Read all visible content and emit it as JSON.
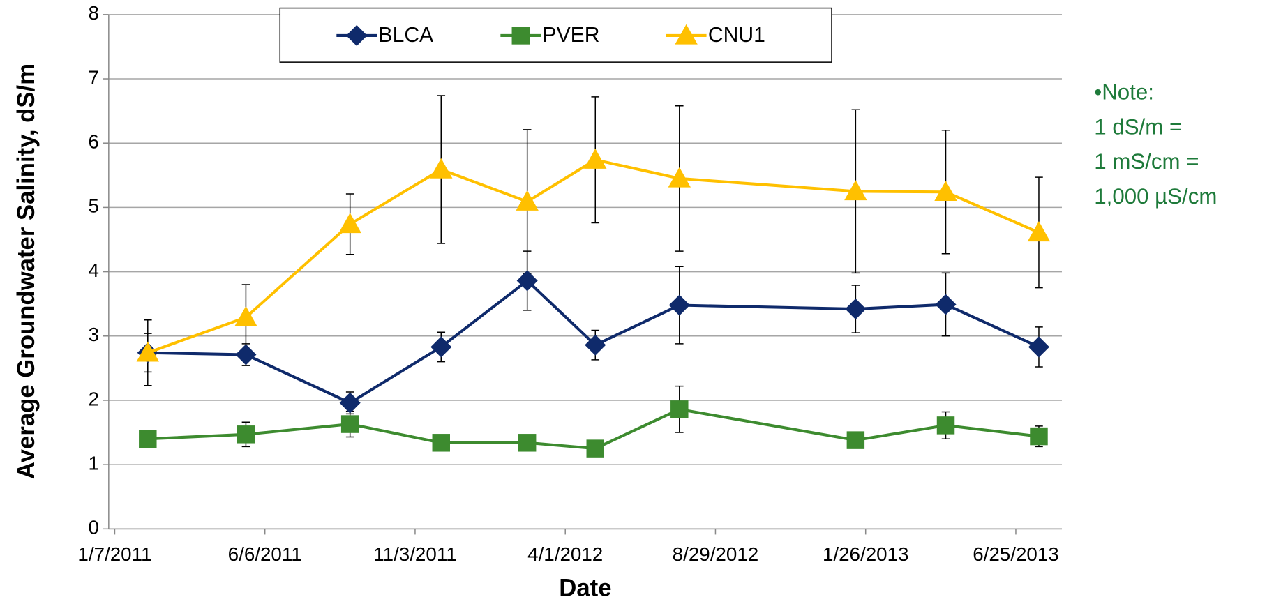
{
  "chart_data": {
    "type": "line",
    "x_label": "Date",
    "y_label": "Average Groundwater Salinity, dS/m",
    "x": [
      "2/9/2011",
      "5/18/2011",
      "8/30/2011",
      "11/29/2011",
      "2/23/2012",
      "5/1/2012",
      "7/24/2012",
      "1/16/2013",
      "4/16/2013",
      "7/18/2013"
    ],
    "series": [
      {
        "name": "BLCA",
        "color": "#0f2a6b",
        "marker": "diamond",
        "values": [
          2.74,
          2.71,
          1.96,
          2.83,
          3.86,
          2.86,
          3.48,
          3.42,
          3.49,
          2.83
        ],
        "errors": [
          0.3,
          0.17,
          0.17,
          0.23,
          0.46,
          0.23,
          0.6,
          0.37,
          0.49,
          0.31
        ]
      },
      {
        "name": "PVER",
        "color": "#3d8b2f",
        "marker": "square",
        "values": [
          1.4,
          1.47,
          1.63,
          1.34,
          1.34,
          1.25,
          1.86,
          1.38,
          1.61,
          1.44
        ],
        "errors": [
          0.05,
          0.19,
          0.2,
          0.05,
          0.05,
          0.05,
          0.36,
          0.05,
          0.21,
          0.16
        ]
      },
      {
        "name": "CNU1",
        "color": "#ffc000",
        "marker": "triangle",
        "values": [
          2.74,
          3.29,
          4.74,
          5.59,
          5.09,
          5.74,
          5.45,
          5.25,
          5.24,
          4.61
        ],
        "errors": [
          0.51,
          0.51,
          0.47,
          1.15,
          1.12,
          0.98,
          1.13,
          1.27,
          0.96,
          0.86
        ]
      }
    ],
    "xlim": [
      "1/1/2011",
      "8/10/2013"
    ],
    "xticks": [
      "1/7/2011",
      "6/6/2011",
      "11/3/2011",
      "4/1/2012",
      "8/29/2012",
      "1/26/2013",
      "6/25/2013"
    ],
    "ylim": [
      0,
      8
    ],
    "yticks": [
      0,
      1,
      2,
      3,
      4,
      5,
      6,
      7,
      8
    ],
    "grid": true,
    "legend": "top",
    "note": [
      "•Note:",
      "1 dS/m =",
      "1 mS/cm =",
      "1,000 µS/cm"
    ]
  }
}
